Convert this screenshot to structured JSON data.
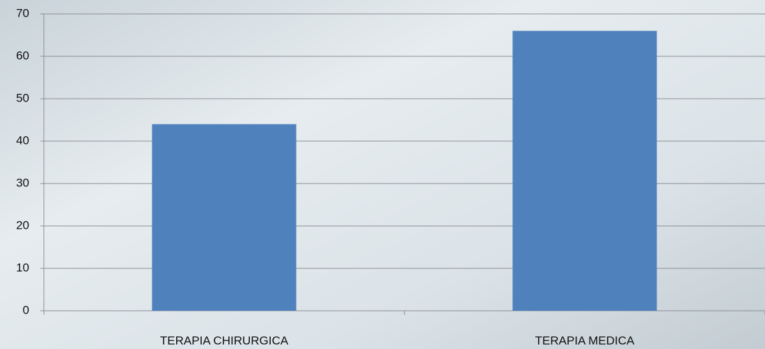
{
  "chart_data": {
    "type": "bar",
    "categories": [
      "TERAPIA CHIRURGICA",
      "TERAPIA MEDICA"
    ],
    "values": [
      44,
      66
    ],
    "color": "#4f81bd",
    "ylim": [
      0,
      70
    ],
    "yticks": [
      0,
      10,
      20,
      30,
      40,
      50,
      60,
      70
    ],
    "grid": true
  }
}
